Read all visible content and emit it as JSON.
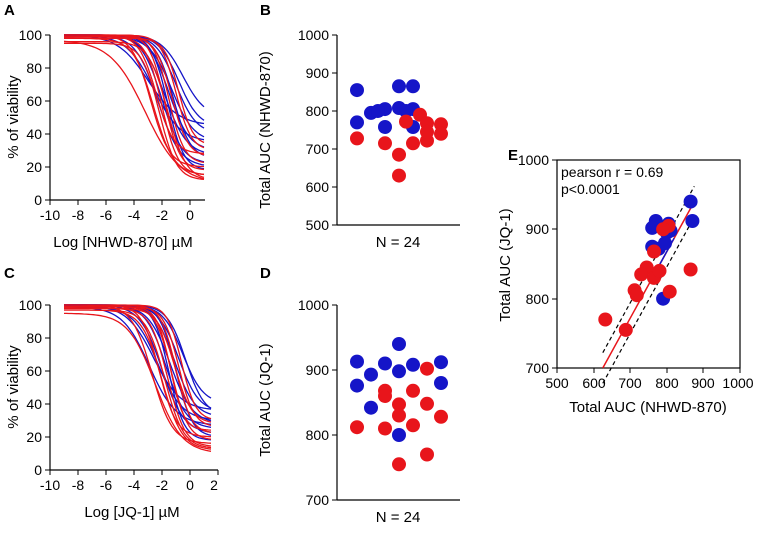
{
  "colors": {
    "blue": "#1515c8",
    "red": "#e8151b",
    "black": "#000000"
  },
  "chart_data": [
    {
      "id": "A",
      "panel_label": "A",
      "type": "line",
      "xlabel": "Log [NHWD-870] µM",
      "ylabel": "% of viability",
      "xlim": [
        -10,
        2
      ],
      "ylim": [
        0,
        100
      ],
      "xticks": [
        "-10",
        "-8",
        "-6",
        "-4",
        "-2",
        "0"
      ],
      "yticks": [
        "0",
        "20",
        "40",
        "60",
        "80",
        "100"
      ],
      "x_range": [
        -9,
        1
      ],
      "series": [
        {
          "name": "blue-1",
          "color": "blue",
          "top": 100,
          "bottom": 50,
          "ec50": -0.5,
          "hill": 0.55
        },
        {
          "name": "blue-2",
          "color": "blue",
          "top": 100,
          "bottom": 44,
          "ec50": -0.8,
          "hill": 0.6
        },
        {
          "name": "blue-3",
          "color": "blue",
          "top": 100,
          "bottom": 40,
          "ec50": -1.0,
          "hill": 0.6
        },
        {
          "name": "blue-4",
          "color": "blue",
          "top": 99,
          "bottom": 35,
          "ec50": -1.3,
          "hill": 0.55
        },
        {
          "name": "blue-5",
          "color": "blue",
          "top": 100,
          "bottom": 30,
          "ec50": -1.5,
          "hill": 0.6
        },
        {
          "name": "blue-6",
          "color": "blue",
          "top": 100,
          "bottom": 27,
          "ec50": -1.8,
          "hill": 0.55
        },
        {
          "name": "blue-7",
          "color": "blue",
          "top": 100,
          "bottom": 22,
          "ec50": -2.0,
          "hill": 0.6
        },
        {
          "name": "blue-8",
          "color": "blue",
          "top": 100,
          "bottom": 20,
          "ec50": -2.3,
          "hill": 0.55
        },
        {
          "name": "blue-9",
          "color": "blue",
          "top": 100,
          "bottom": 35,
          "ec50": -2.6,
          "hill": 0.45
        },
        {
          "name": "blue-10",
          "color": "blue",
          "top": 100,
          "bottom": 45,
          "ec50": -3.0,
          "hill": 0.4
        },
        {
          "name": "blue-11",
          "color": "blue",
          "top": 99,
          "bottom": 25,
          "ec50": -1.2,
          "hill": 0.7
        },
        {
          "name": "blue-12",
          "color": "blue",
          "top": 100,
          "bottom": 18,
          "ec50": -1.6,
          "hill": 0.75
        },
        {
          "name": "red-1",
          "color": "red",
          "top": 97,
          "bottom": 10,
          "ec50": -3.2,
          "hill": 0.35
        },
        {
          "name": "red-2",
          "color": "red",
          "top": 95,
          "bottom": 12,
          "ec50": -2.2,
          "hill": 0.7
        },
        {
          "name": "red-3",
          "color": "red",
          "top": 99,
          "bottom": 15,
          "ec50": -2.0,
          "hill": 0.75
        },
        {
          "name": "red-4",
          "color": "red",
          "top": 100,
          "bottom": 18,
          "ec50": -1.8,
          "hill": 0.8
        },
        {
          "name": "red-5",
          "color": "red",
          "top": 100,
          "bottom": 22,
          "ec50": -1.5,
          "hill": 0.8
        },
        {
          "name": "red-6",
          "color": "red",
          "top": 99,
          "bottom": 26,
          "ec50": -1.3,
          "hill": 0.75
        },
        {
          "name": "red-7",
          "color": "red",
          "top": 100,
          "bottom": 30,
          "ec50": -1.0,
          "hill": 0.8
        },
        {
          "name": "red-8",
          "color": "red",
          "top": 98,
          "bottom": 15,
          "ec50": -2.6,
          "hill": 0.6
        },
        {
          "name": "red-9",
          "color": "red",
          "top": 100,
          "bottom": 20,
          "ec50": -2.8,
          "hill": 0.65
        },
        {
          "name": "red-10",
          "color": "red",
          "top": 98,
          "bottom": 33,
          "ec50": -0.8,
          "hill": 0.85
        },
        {
          "name": "red-11",
          "color": "red",
          "top": 100,
          "bottom": 28,
          "ec50": -2.4,
          "hill": 0.7
        },
        {
          "name": "red-12",
          "color": "red",
          "top": 96,
          "bottom": 12,
          "ec50": -1.6,
          "hill": 0.65
        }
      ]
    },
    {
      "id": "B",
      "panel_label": "B",
      "type": "scatter",
      "xlabel": "N = 24",
      "ylabel": "Total AUC  (NHWD-870)",
      "ylim": [
        500,
        1000
      ],
      "yticks": [
        "500",
        "600",
        "700",
        "800",
        "900",
        "1000"
      ],
      "points": [
        {
          "xo": -3,
          "y": 855,
          "c": "blue"
        },
        {
          "xo": 0,
          "y": 865,
          "c": "blue"
        },
        {
          "xo": 1,
          "y": 865,
          "c": "blue"
        },
        {
          "xo": -2,
          "y": 795,
          "c": "blue"
        },
        {
          "xo": -1,
          "y": 805,
          "c": "blue"
        },
        {
          "xo": 0,
          "y": 808,
          "c": "blue"
        },
        {
          "xo": 1,
          "y": 805,
          "c": "blue"
        },
        {
          "xo": -1.5,
          "y": 800,
          "c": "blue"
        },
        {
          "xo": 0.5,
          "y": 800,
          "c": "blue"
        },
        {
          "xo": -3,
          "y": 770,
          "c": "blue"
        },
        {
          "xo": -1,
          "y": 758,
          "c": "blue"
        },
        {
          "xo": 1,
          "y": 758,
          "c": "blue"
        },
        {
          "xo": 1.5,
          "y": 790,
          "c": "red"
        },
        {
          "xo": 0.5,
          "y": 772,
          "c": "red"
        },
        {
          "xo": 2,
          "y": 768,
          "c": "red"
        },
        {
          "xo": 3,
          "y": 765,
          "c": "red"
        },
        {
          "xo": 3,
          "y": 740,
          "c": "red"
        },
        {
          "xo": -3,
          "y": 728,
          "c": "red"
        },
        {
          "xo": -1,
          "y": 715,
          "c": "red"
        },
        {
          "xo": 1,
          "y": 715,
          "c": "red"
        },
        {
          "xo": 2,
          "y": 722,
          "c": "red"
        },
        {
          "xo": 0,
          "y": 685,
          "c": "red"
        },
        {
          "xo": 0,
          "y": 630,
          "c": "red"
        },
        {
          "xo": 2,
          "y": 745,
          "c": "red"
        }
      ]
    },
    {
      "id": "C",
      "panel_label": "C",
      "type": "line",
      "xlabel": "Log [JQ-1] µM",
      "ylabel": "% of viability",
      "xlim": [
        -10,
        2
      ],
      "ylim": [
        0,
        100
      ],
      "xticks": [
        "-10",
        "-8",
        "-6",
        "-4",
        "-2",
        "0",
        "2"
      ],
      "yticks": [
        "0",
        "20",
        "40",
        "60",
        "80",
        "100"
      ],
      "x_range": [
        -9,
        1.5
      ],
      "series": [
        {
          "name": "blue-1",
          "color": "blue",
          "top": 100,
          "bottom": 40,
          "ec50": -0.5,
          "hill": 0.6
        },
        {
          "name": "blue-2",
          "color": "blue",
          "top": 100,
          "bottom": 35,
          "ec50": -0.8,
          "hill": 0.6
        },
        {
          "name": "blue-3",
          "color": "blue",
          "top": 100,
          "bottom": 32,
          "ec50": -1.1,
          "hill": 0.6
        },
        {
          "name": "blue-4",
          "color": "blue",
          "top": 100,
          "bottom": 28,
          "ec50": -1.4,
          "hill": 0.55
        },
        {
          "name": "blue-5",
          "color": "blue",
          "top": 100,
          "bottom": 25,
          "ec50": -1.7,
          "hill": 0.6
        },
        {
          "name": "blue-6",
          "color": "blue",
          "top": 100,
          "bottom": 22,
          "ec50": -2.0,
          "hill": 0.55
        },
        {
          "name": "blue-7",
          "color": "blue",
          "top": 99,
          "bottom": 30,
          "ec50": -2.3,
          "hill": 0.5
        },
        {
          "name": "blue-8",
          "color": "blue",
          "top": 100,
          "bottom": 36,
          "ec50": -2.6,
          "hill": 0.45
        },
        {
          "name": "blue-9",
          "color": "blue",
          "top": 100,
          "bottom": 20,
          "ec50": -1.0,
          "hill": 0.75
        },
        {
          "name": "blue-10",
          "color": "blue",
          "top": 100,
          "bottom": 18,
          "ec50": -1.5,
          "hill": 0.8
        },
        {
          "name": "blue-11",
          "color": "blue",
          "top": 99,
          "bottom": 27,
          "ec50": -2.9,
          "hill": 0.45
        },
        {
          "name": "blue-12",
          "color": "blue",
          "top": 100,
          "bottom": 33,
          "ec50": -0.3,
          "hill": 0.65
        },
        {
          "name": "red-1",
          "color": "red",
          "top": 95,
          "bottom": 10,
          "ec50": -2.5,
          "hill": 0.45
        },
        {
          "name": "red-2",
          "color": "red",
          "top": 97,
          "bottom": 12,
          "ec50": -2.0,
          "hill": 0.6
        },
        {
          "name": "red-3",
          "color": "red",
          "top": 98,
          "bottom": 14,
          "ec50": -1.6,
          "hill": 0.7
        },
        {
          "name": "red-4",
          "color": "red",
          "top": 99,
          "bottom": 18,
          "ec50": -1.3,
          "hill": 0.75
        },
        {
          "name": "red-5",
          "color": "red",
          "top": 100,
          "bottom": 22,
          "ec50": -1.0,
          "hill": 0.8
        },
        {
          "name": "red-6",
          "color": "red",
          "top": 99,
          "bottom": 26,
          "ec50": -0.8,
          "hill": 0.8
        },
        {
          "name": "red-7",
          "color": "red",
          "top": 100,
          "bottom": 30,
          "ec50": -0.6,
          "hill": 0.85
        },
        {
          "name": "red-8",
          "color": "red",
          "top": 97,
          "bottom": 13,
          "ec50": -1.8,
          "hill": 0.65
        },
        {
          "name": "red-9",
          "color": "red",
          "top": 100,
          "bottom": 20,
          "ec50": -2.2,
          "hill": 0.7
        },
        {
          "name": "red-10",
          "color": "red",
          "top": 99,
          "bottom": 24,
          "ec50": -1.4,
          "hill": 0.9
        },
        {
          "name": "red-11",
          "color": "red",
          "top": 100,
          "bottom": 16,
          "ec50": -2.7,
          "hill": 0.6
        },
        {
          "name": "red-12",
          "color": "red",
          "top": 98,
          "bottom": 28,
          "ec50": -1.1,
          "hill": 0.7
        }
      ]
    },
    {
      "id": "D",
      "panel_label": "D",
      "type": "scatter",
      "xlabel": "N = 24",
      "ylabel": "Total AUC  (JQ-1)",
      "ylim": [
        700,
        1000
      ],
      "yticks": [
        "700",
        "800",
        "900",
        "1000"
      ],
      "points": [
        {
          "xo": 0,
          "y": 940,
          "c": "blue"
        },
        {
          "xo": -3,
          "y": 913,
          "c": "blue"
        },
        {
          "xo": -1,
          "y": 910,
          "c": "blue"
        },
        {
          "xo": 1,
          "y": 908,
          "c": "blue"
        },
        {
          "xo": 3,
          "y": 912,
          "c": "blue"
        },
        {
          "xo": -2,
          "y": 893,
          "c": "blue"
        },
        {
          "xo": 0,
          "y": 898,
          "c": "blue"
        },
        {
          "xo": 2,
          "y": 902,
          "c": "red"
        },
        {
          "xo": -3,
          "y": 876,
          "c": "blue"
        },
        {
          "xo": -1,
          "y": 868,
          "c": "red"
        },
        {
          "xo": 1,
          "y": 868,
          "c": "red"
        },
        {
          "xo": 3,
          "y": 880,
          "c": "blue"
        },
        {
          "xo": -2,
          "y": 842,
          "c": "blue"
        },
        {
          "xo": 0,
          "y": 847,
          "c": "red"
        },
        {
          "xo": 2,
          "y": 848,
          "c": "red"
        },
        {
          "xo": 0,
          "y": 830,
          "c": "red"
        },
        {
          "xo": 3,
          "y": 828,
          "c": "red"
        },
        {
          "xo": -3,
          "y": 812,
          "c": "red"
        },
        {
          "xo": -1,
          "y": 810,
          "c": "red"
        },
        {
          "xo": 1,
          "y": 815,
          "c": "red"
        },
        {
          "xo": 0,
          "y": 800,
          "c": "blue"
        },
        {
          "xo": 2,
          "y": 770,
          "c": "red"
        },
        {
          "xo": 0,
          "y": 755,
          "c": "red"
        },
        {
          "xo": -1,
          "y": 860,
          "c": "red"
        }
      ]
    },
    {
      "id": "E",
      "panel_label": "E",
      "type": "scatter",
      "xlabel": "Total AUC  (NHWD-870)",
      "ylabel": "Total AUC  (JQ-1)",
      "xlim": [
        500,
        1000
      ],
      "ylim": [
        700,
        1000
      ],
      "xticks": [
        "500",
        "600",
        "700",
        "800",
        "900",
        "1000"
      ],
      "yticks": [
        "700",
        "800",
        "900",
        "1000"
      ],
      "annotation_1": "pearson r = 0.69",
      "annotation_2": "p<0.0001",
      "regression": {
        "slope": 0.96,
        "intercept": 100,
        "ci_offset": 22,
        "x_from": 625,
        "x_to": 875
      },
      "points": [
        {
          "x": 865,
          "y": 940,
          "c": "blue"
        },
        {
          "x": 870,
          "y": 912,
          "c": "blue"
        },
        {
          "x": 770,
          "y": 912,
          "c": "blue"
        },
        {
          "x": 805,
          "y": 908,
          "c": "blue"
        },
        {
          "x": 760,
          "y": 902,
          "c": "blue"
        },
        {
          "x": 800,
          "y": 895,
          "c": "blue"
        },
        {
          "x": 810,
          "y": 898,
          "c": "blue"
        },
        {
          "x": 760,
          "y": 875,
          "c": "blue"
        },
        {
          "x": 778,
          "y": 872,
          "c": "blue"
        },
        {
          "x": 795,
          "y": 880,
          "c": "blue"
        },
        {
          "x": 790,
          "y": 800,
          "c": "blue"
        },
        {
          "x": 805,
          "y": 905,
          "c": "red"
        },
        {
          "x": 790,
          "y": 900,
          "c": "red"
        },
        {
          "x": 765,
          "y": 868,
          "c": "red"
        },
        {
          "x": 745,
          "y": 845,
          "c": "red"
        },
        {
          "x": 730,
          "y": 835,
          "c": "red"
        },
        {
          "x": 765,
          "y": 830,
          "c": "red"
        },
        {
          "x": 712,
          "y": 812,
          "c": "red"
        },
        {
          "x": 718,
          "y": 805,
          "c": "red"
        },
        {
          "x": 808,
          "y": 810,
          "c": "red"
        },
        {
          "x": 865,
          "y": 842,
          "c": "red"
        },
        {
          "x": 632,
          "y": 770,
          "c": "red"
        },
        {
          "x": 688,
          "y": 755,
          "c": "red"
        },
        {
          "x": 780,
          "y": 840,
          "c": "red"
        }
      ]
    }
  ]
}
